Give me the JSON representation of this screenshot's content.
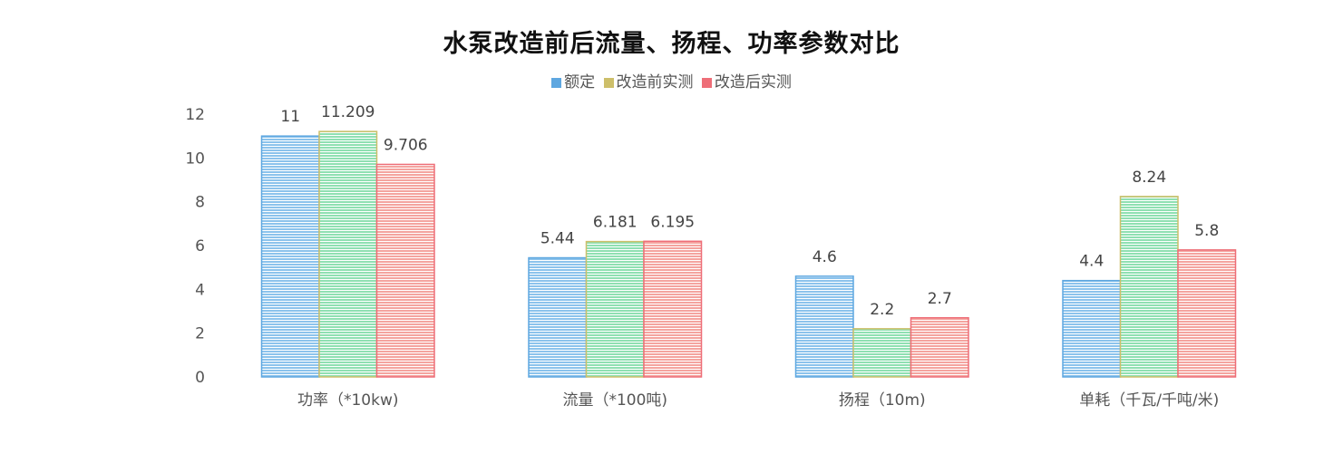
{
  "chart_data": {
    "type": "bar",
    "title": "水泵改造前后流量、扬程、功率参数对比",
    "categories": [
      "功率（*10kw)",
      "流量（*100吨)",
      "扬程（10m)",
      "单耗（千瓦/千吨/米)"
    ],
    "series": [
      {
        "name": "额定",
        "values": [
          11,
          5.44,
          4.6,
          4.4
        ],
        "value_labels": [
          "11",
          "5.44",
          "4.6",
          "4.4"
        ],
        "color": "#5ea7e0",
        "fill": "#8cc3ec"
      },
      {
        "name": "改造前实测",
        "values": [
          11.209,
          6.181,
          2.2,
          8.24
        ],
        "value_labels": [
          "11.209",
          "6.181",
          "2.2",
          "8.24"
        ],
        "color": "#cdbf6a",
        "fill": "#8fe0b2"
      },
      {
        "name": "改造后实测",
        "values": [
          9.706,
          6.195,
          2.7,
          5.8
        ],
        "value_labels": [
          "9.706",
          "6.195",
          "2.7",
          "5.8"
        ],
        "color": "#ee6e78",
        "fill": "#f4a49f"
      }
    ],
    "ylim": [
      0,
      12
    ],
    "yticks": [
      "0",
      "2",
      "4",
      "6",
      "8",
      "10",
      "12"
    ],
    "grid": false,
    "legend_position": "top"
  }
}
